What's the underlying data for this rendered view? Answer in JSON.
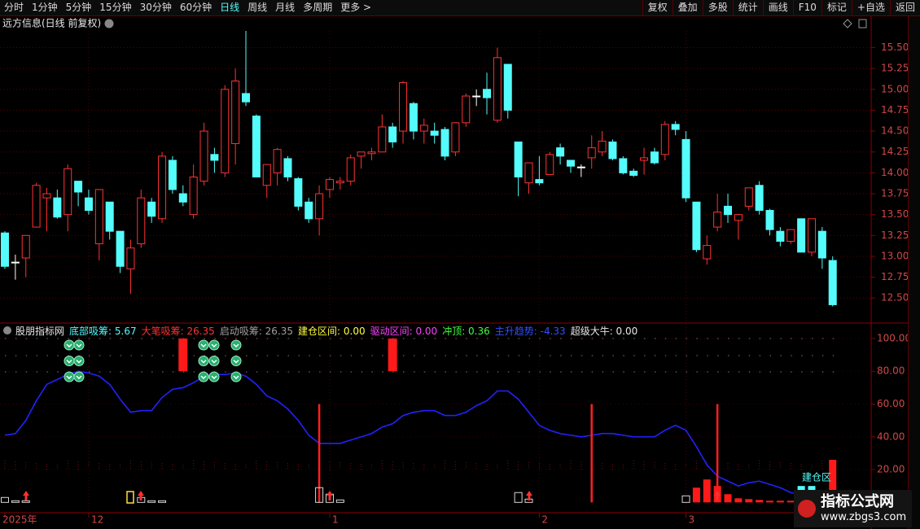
{
  "toolbar": {
    "left": [
      "分时",
      "1分钟",
      "5分钟",
      "15分钟",
      "30分钟",
      "60分钟",
      "日线",
      "周线",
      "月线",
      "多周期",
      "更多 >"
    ],
    "right": [
      "复权",
      "叠加",
      "多股",
      "统计",
      "画线",
      "F10",
      "标记",
      "+自选",
      "返回"
    ]
  },
  "chart_data": [
    {
      "type": "candlestick",
      "title": "远方信息(日线 前复权)",
      "open": [
        13.28,
        12.93,
        12.98,
        13.35,
        13.7,
        13.7,
        13.5,
        13.9,
        13.7,
        13.15,
        13.65,
        13.3,
        12.85,
        13.15,
        13.65,
        13.45,
        14.15,
        13.75,
        13.5,
        13.9,
        14.22,
        14.0,
        14.35,
        14.95,
        14.68,
        13.85,
        14.0,
        14.17,
        13.93,
        13.65,
        13.45,
        13.8,
        13.88,
        13.9,
        14.2,
        14.23,
        14.25,
        14.55,
        14.5,
        14.83,
        14.5,
        14.5,
        14.52,
        14.25,
        14.6,
        14.92,
        15.0,
        14.63,
        15.3,
        14.37,
        13.88,
        13.92,
        13.98,
        14.3,
        14.15,
        14.07,
        14.18,
        14.25,
        14.37,
        14.17,
        14.02,
        14.15,
        14.25,
        14.22,
        14.58,
        14.4,
        13.65,
        12.97,
        13.35,
        13.6,
        13.43,
        13.6,
        13.85,
        13.55,
        13.3,
        13.18,
        13.45,
        13.05,
        13.3,
        12.95
      ],
      "high": [
        13.3,
        13.02,
        13.25,
        13.88,
        13.82,
        13.8,
        14.1,
        13.9,
        13.8,
        13.8,
        13.65,
        13.3,
        13.2,
        13.8,
        13.7,
        14.25,
        14.2,
        13.85,
        14.1,
        14.6,
        14.3,
        15.05,
        15.25,
        15.7,
        14.7,
        14.1,
        14.3,
        14.2,
        13.95,
        13.7,
        13.85,
        13.95,
        13.95,
        14.22,
        14.25,
        14.3,
        14.7,
        14.6,
        15.1,
        14.85,
        14.65,
        14.6,
        14.55,
        14.6,
        14.95,
        15.0,
        15.2,
        15.5,
        15.3,
        14.37,
        14.12,
        14.2,
        14.25,
        14.35,
        14.15,
        14.1,
        14.45,
        14.5,
        14.4,
        14.2,
        14.05,
        14.3,
        14.3,
        14.62,
        14.62,
        14.5,
        13.65,
        13.25,
        13.75,
        13.75,
        13.5,
        13.82,
        13.9,
        13.57,
        13.35,
        13.32,
        13.45,
        13.45,
        13.35,
        13.0
      ],
      "low": [
        12.85,
        12.72,
        12.75,
        13.35,
        13.3,
        13.45,
        13.3,
        13.6,
        13.5,
        12.95,
        13.2,
        12.8,
        12.55,
        13.1,
        13.4,
        13.4,
        13.75,
        13.6,
        13.45,
        13.85,
        14.0,
        13.95,
        14.1,
        14.8,
        13.95,
        13.7,
        13.85,
        13.9,
        13.55,
        13.4,
        13.25,
        13.7,
        13.8,
        13.85,
        14.05,
        14.15,
        14.25,
        14.3,
        14.35,
        14.4,
        14.35,
        14.35,
        14.15,
        14.2,
        14.55,
        14.8,
        14.7,
        14.6,
        14.65,
        13.72,
        13.75,
        13.85,
        13.98,
        14.1,
        14.0,
        13.95,
        14.05,
        14.2,
        14.15,
        13.98,
        13.95,
        13.98,
        14.1,
        14.15,
        14.45,
        13.65,
        13.05,
        12.9,
        13.3,
        13.4,
        13.2,
        13.55,
        13.5,
        13.25,
        13.12,
        13.15,
        13.05,
        13.0,
        12.85,
        12.4
      ],
      "close": [
        12.88,
        12.93,
        13.25,
        13.85,
        13.75,
        13.47,
        14.05,
        13.77,
        13.55,
        13.8,
        13.3,
        12.88,
        13.1,
        13.7,
        13.48,
        14.2,
        13.8,
        13.65,
        13.95,
        14.5,
        14.15,
        15.0,
        15.1,
        14.85,
        13.95,
        14.1,
        14.28,
        13.95,
        13.6,
        13.45,
        13.75,
        13.92,
        13.9,
        14.18,
        14.25,
        14.25,
        14.55,
        14.37,
        15.08,
        14.5,
        14.57,
        14.45,
        14.2,
        14.6,
        14.92,
        14.92,
        14.9,
        15.38,
        14.75,
        13.95,
        14.12,
        13.88,
        14.22,
        14.2,
        14.08,
        14.07,
        14.3,
        14.38,
        14.17,
        14.0,
        13.97,
        14.18,
        14.12,
        14.58,
        14.52,
        13.7,
        13.08,
        13.13,
        13.53,
        13.5,
        13.5,
        13.82,
        13.55,
        13.32,
        13.18,
        13.32,
        13.05,
        13.45,
        12.98,
        12.42
      ],
      "up_color": "#ff3232",
      "down_color": "#54fcfc",
      "flat_color": "#ffffff",
      "ylim": [
        12.2,
        15.7
      ],
      "yticks": [
        {
          "value": 15.5,
          "label": "15.50"
        },
        {
          "value": 15.25,
          "label": "15.25"
        },
        {
          "value": 15,
          "label": "15.00"
        },
        {
          "value": 14.75,
          "label": "14.75"
        },
        {
          "value": 14.5,
          "label": "14.50"
        },
        {
          "value": 14.25,
          "label": "14.25"
        },
        {
          "value": 14,
          "label": "14.00"
        },
        {
          "value": 13.75,
          "label": "13.75"
        },
        {
          "value": 13.5,
          "label": "13.50"
        },
        {
          "value": 13.25,
          "label": "13.25"
        },
        {
          "value": 13,
          "label": "13.00"
        },
        {
          "value": 12.75,
          "label": "12.75"
        },
        {
          "value": 12.5,
          "label": "12.50"
        }
      ],
      "grid": true
    },
    {
      "type": "indicator",
      "legend": [
        {
          "text": "股朋指标网",
          "color": "#e8e8e8"
        },
        {
          "text": "底部吸筹: 5.67",
          "color": "#54fcfc"
        },
        {
          "text": "大笔吸筹: 26.35",
          "color": "#ff3232"
        },
        {
          "text": "启动吸筹: 26.35",
          "color": "#a0a0a0"
        },
        {
          "text": "建仓区间: 0.00",
          "color": "#ffff40"
        },
        {
          "text": "驱动区间: 0.00",
          "color": "#ff40ff"
        },
        {
          "text": "冲顶: 0.36",
          "color": "#40ff40"
        },
        {
          "text": "主升趋势: -4.33",
          "color": "#3050ff"
        },
        {
          "text": "超级大牛: 0.00",
          "color": "#e8e8e8"
        }
      ],
      "categories": [
        "2025年",
        null,
        null,
        null,
        null,
        null,
        null,
        null,
        "12",
        null,
        null,
        null,
        null,
        null,
        null,
        null,
        null,
        null,
        null,
        null,
        null,
        null,
        null,
        null,
        null,
        null,
        null,
        null,
        null,
        null,
        null,
        "1",
        null,
        null,
        null,
        null,
        null,
        null,
        null,
        null,
        null,
        null,
        null,
        null,
        null,
        null,
        null,
        null,
        null,
        null,
        null,
        "2",
        null,
        null,
        null,
        null,
        null,
        null,
        null,
        null,
        null,
        null,
        null,
        null,
        null,
        "3",
        null,
        null,
        null,
        null,
        null,
        null,
        null,
        null,
        null,
        null,
        null,
        null,
        null,
        null
      ],
      "series": [
        {
          "style": "line",
          "color": "#2222ff",
          "values": [
            41,
            42,
            50,
            62,
            72,
            75,
            78,
            80,
            79,
            77,
            72,
            63,
            55,
            56,
            56,
            64,
            69,
            70,
            73,
            77,
            78,
            78,
            79,
            77,
            72,
            65,
            62,
            57,
            50,
            41,
            36,
            36,
            36,
            38,
            40,
            42,
            46,
            48,
            53,
            55,
            56,
            56,
            53,
            53,
            55,
            59,
            62,
            68,
            68,
            63,
            55,
            47,
            44,
            42,
            41,
            40,
            41,
            42,
            42,
            41,
            40,
            40,
            40,
            44,
            47,
            44,
            34,
            23,
            16,
            13,
            10,
            12,
            13,
            11,
            9,
            6,
            5,
            4,
            4,
            3
          ]
        },
        {
          "style": "spike",
          "color": "#ff2020",
          "values": [
            null,
            null,
            null,
            null,
            null,
            null,
            null,
            null,
            null,
            null,
            null,
            null,
            null,
            null,
            null,
            null,
            null,
            null,
            null,
            null,
            null,
            null,
            null,
            null,
            null,
            null,
            null,
            null,
            null,
            null,
            60,
            null,
            null,
            null,
            null,
            null,
            null,
            null,
            null,
            null,
            null,
            null,
            null,
            null,
            null,
            null,
            null,
            null,
            null,
            null,
            null,
            null,
            null,
            null,
            null,
            null,
            60,
            null,
            null,
            null,
            null,
            null,
            null,
            null,
            null,
            null,
            null,
            null,
            60,
            null,
            null,
            null,
            null,
            null,
            null,
            null,
            null,
            null,
            null,
            null
          ]
        },
        {
          "style": "block",
          "color": "#ff1a1a",
          "base": 80,
          "values": [
            null,
            null,
            null,
            null,
            null,
            null,
            null,
            null,
            null,
            null,
            null,
            null,
            null,
            null,
            null,
            null,
            null,
            100,
            null,
            null,
            null,
            null,
            null,
            null,
            null,
            null,
            null,
            null,
            null,
            null,
            null,
            null,
            null,
            null,
            null,
            null,
            null,
            100,
            null,
            null,
            null,
            null,
            null,
            null,
            null,
            null,
            null,
            null,
            null,
            null,
            null,
            null,
            null,
            null,
            null,
            null,
            null,
            null,
            null,
            null,
            null,
            null,
            null,
            null,
            null,
            null,
            null,
            null,
            null,
            null,
            null,
            null,
            null,
            null,
            null,
            null,
            null,
            null,
            null,
            null
          ]
        },
        {
          "style": "bar",
          "color": "#ff1a1a",
          "values": [
            null,
            null,
            null,
            null,
            null,
            null,
            null,
            null,
            null,
            null,
            null,
            null,
            null,
            null,
            null,
            null,
            null,
            null,
            null,
            null,
            null,
            null,
            null,
            null,
            null,
            null,
            null,
            null,
            null,
            null,
            null,
            null,
            null,
            null,
            null,
            null,
            null,
            null,
            null,
            null,
            null,
            null,
            null,
            null,
            null,
            null,
            null,
            null,
            null,
            null,
            null,
            null,
            null,
            null,
            null,
            null,
            null,
            null,
            null,
            null,
            null,
            null,
            null,
            null,
            null,
            null,
            9,
            14,
            10,
            5,
            2.5,
            2,
            1.5,
            1,
            1,
            1,
            null,
            null,
            1.5,
            26
          ]
        },
        {
          "style": "bar",
          "color": "#54fcfc",
          "values": [
            null,
            null,
            null,
            null,
            null,
            null,
            null,
            null,
            null,
            null,
            null,
            null,
            null,
            null,
            null,
            null,
            null,
            null,
            null,
            null,
            null,
            null,
            null,
            null,
            null,
            null,
            null,
            null,
            null,
            null,
            null,
            null,
            null,
            null,
            null,
            null,
            null,
            null,
            null,
            null,
            null,
            null,
            null,
            null,
            null,
            null,
            null,
            null,
            null,
            null,
            null,
            null,
            null,
            null,
            null,
            null,
            null,
            null,
            null,
            null,
            null,
            null,
            null,
            null,
            null,
            null,
            null,
            null,
            null,
            null,
            null,
            null,
            null,
            null,
            null,
            null,
            10,
            10,
            null,
            null
          ]
        },
        {
          "style": "hollow",
          "color": "#d8d8d8",
          "values": [
            3,
            1,
            1,
            null,
            null,
            null,
            null,
            null,
            null,
            null,
            null,
            null,
            null,
            3,
            1,
            1,
            null,
            null,
            null,
            null,
            null,
            null,
            null,
            null,
            null,
            null,
            null,
            null,
            null,
            null,
            9,
            5,
            1.5,
            null,
            null,
            null,
            null,
            null,
            null,
            null,
            null,
            null,
            null,
            null,
            null,
            null,
            null,
            null,
            null,
            6,
            2,
            null,
            null,
            null,
            null,
            null,
            null,
            null,
            null,
            null,
            null,
            null,
            null,
            null,
            null,
            4,
            null,
            null,
            null,
            null,
            null,
            null,
            null,
            null,
            null,
            null,
            null,
            null,
            null,
            null
          ]
        }
      ],
      "annotation": "建仓区",
      "ylim": [
        -6.3,
        109.4
      ],
      "yticks": [
        {
          "value": 100,
          "label": "100.00"
        },
        {
          "value": 80,
          "label": "80.00"
        },
        {
          "value": 60,
          "label": "60.00"
        },
        {
          "value": 40,
          "label": "40.00"
        },
        {
          "value": 20,
          "label": "20.00"
        }
      ],
      "grid": true
    }
  ],
  "watermark": {
    "title": "指标公式网",
    "url": "www.zbgs3.com"
  }
}
